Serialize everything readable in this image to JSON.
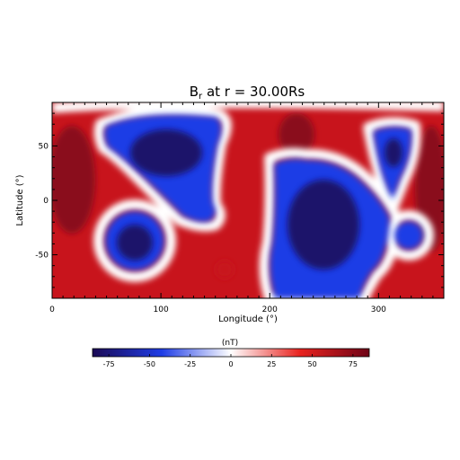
{
  "chart_data": {
    "type": "heatmap",
    "title_main": "B",
    "title_sub": "r",
    "title_rest": " at r = 30.00Rs",
    "xlabel": "Longitude (°)",
    "ylabel": "Latitude (°)",
    "xlim": [
      0,
      360
    ],
    "ylim": [
      -90,
      90
    ],
    "xticks": [
      0,
      100,
      200,
      300
    ],
    "yticks": [
      50,
      0,
      -50
    ],
    "colorbar": {
      "label": "(nT)",
      "range": [
        -85,
        85
      ],
      "ticks": [
        -75,
        -50,
        -25,
        0,
        25,
        50,
        75
      ],
      "colors": {
        "neg_max": "#1b0a55",
        "neg": "#1f3de6",
        "zero": "#ffffff",
        "pos": "#e8231f",
        "pos_max": "#6e0316"
      }
    },
    "regions": [
      {
        "polarity": "negative",
        "shape": "north-central blob",
        "approx_lon_lat": [
          [
            48,
            70
          ],
          [
            150,
            80
          ],
          [
            138,
            0
          ],
          [
            55,
            40
          ]
        ]
      },
      {
        "polarity": "negative",
        "shape": "south-west circle",
        "center": [
          85,
          -35
        ],
        "radius_deg": 35
      },
      {
        "polarity": "negative",
        "shape": "southern central lobe",
        "approx_lon_lat": [
          [
            200,
            20
          ],
          [
            290,
            10
          ],
          [
            300,
            -88
          ],
          [
            180,
            -88
          ]
        ]
      },
      {
        "polarity": "negative",
        "shape": "north-east lobe",
        "approx_lon_lat": [
          [
            295,
            60
          ],
          [
            340,
            60
          ],
          [
            325,
            0
          ]
        ]
      },
      {
        "polarity": "negative",
        "shape": "south-east blob",
        "center": [
          335,
          -30
        ],
        "radius_deg": 18
      }
    ]
  }
}
